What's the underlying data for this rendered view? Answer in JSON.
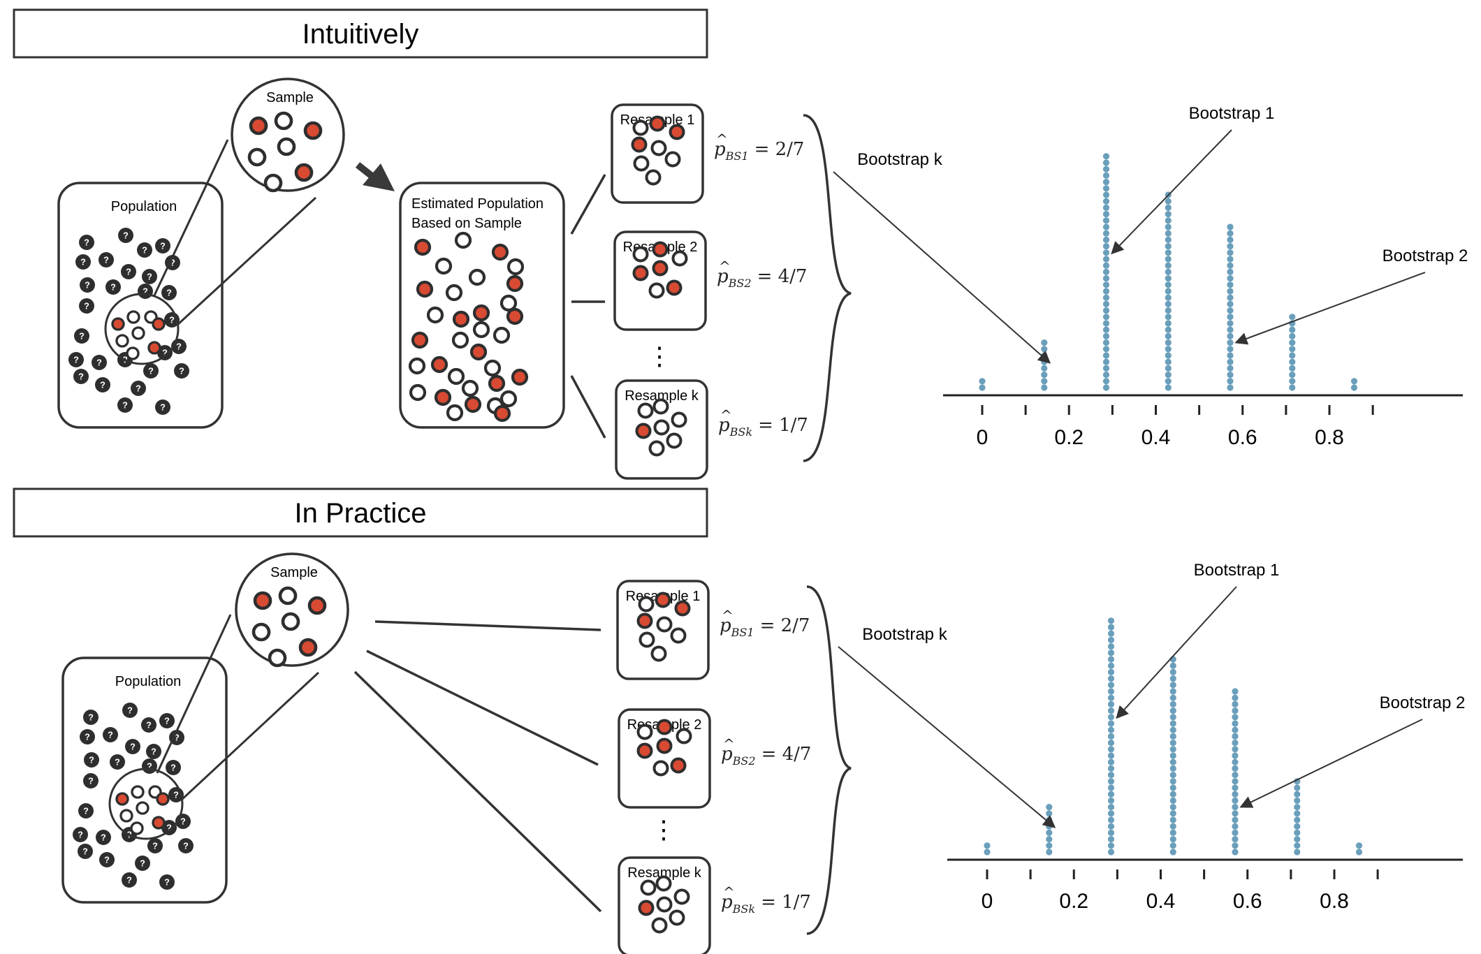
{
  "colors": {
    "dot_blue": "#6a9fbb",
    "red": "#d94a33",
    "ink": "#333333",
    "marble_ring": "#2e2e2e",
    "line": "#3a3a3a"
  },
  "axis": {
    "ticks": [
      0,
      0.2,
      0.4,
      0.6,
      0.8
    ],
    "tick_labels": [
      "0",
      "0.2",
      "0.4",
      "0.6",
      "0.8"
    ],
    "range": [
      0,
      0.9
    ]
  },
  "panels": [
    {
      "id": "intuitively",
      "title": "Intuitively",
      "population_label": "Population",
      "sample_label": "Sample",
      "estimated_population_label": [
        "Estimated Population",
        "Based on Sample"
      ],
      "dots_label": "⋮",
      "resamples": [
        {
          "label": "Resample 1",
          "estimate": "2/7",
          "subscript": "BS1"
        },
        {
          "label": "Resample 2",
          "estimate": "4/7",
          "subscript": "BS2"
        },
        {
          "label": "Resample k",
          "estimate": "1/7",
          "subscript": "BSk"
        }
      ],
      "annotations": [
        {
          "label": "Bootstrap k",
          "points_to": 0.1429
        },
        {
          "label": "Bootstrap 1",
          "points_to": 0.2857
        },
        {
          "label": "Bootstrap 2",
          "points_to": 0.5714
        }
      ]
    },
    {
      "id": "in-practice",
      "title": "In Practice",
      "population_label": "Population",
      "sample_label": "Sample",
      "dots_label": "⋮",
      "resamples": [
        {
          "label": "Resample 1",
          "estimate": "2/7",
          "subscript": "BS1"
        },
        {
          "label": "Resample 2",
          "estimate": "4/7",
          "subscript": "BS2"
        },
        {
          "label": "Resample k",
          "estimate": "1/7",
          "subscript": "BSk"
        }
      ],
      "annotations": [
        {
          "label": "Bootstrap k",
          "points_to": 0.1429
        },
        {
          "label": "Bootstrap 1",
          "points_to": 0.2857
        },
        {
          "label": "Bootstrap 2",
          "points_to": 0.5714
        }
      ]
    }
  ],
  "chart_data": [
    {
      "type": "scatter",
      "style": "dot plot",
      "x": [
        0,
        0.1429,
        0.2857,
        0.4286,
        0.5714,
        0.7143,
        0.8571
      ],
      "counts": [
        2,
        8,
        37,
        31,
        26,
        12,
        2
      ],
      "xlim": [
        0,
        0.9
      ],
      "ticks": [
        0,
        0.2,
        0.4,
        0.6,
        0.8
      ]
    },
    {
      "type": "scatter",
      "style": "dot plot",
      "x": [
        0,
        0.1429,
        0.2857,
        0.4286,
        0.5714,
        0.7143,
        0.8571
      ],
      "counts": [
        2,
        8,
        37,
        31,
        26,
        12,
        2
      ],
      "xlim": [
        0,
        0.9
      ],
      "ticks": [
        0,
        0.2,
        0.4,
        0.6,
        0.8
      ]
    }
  ]
}
